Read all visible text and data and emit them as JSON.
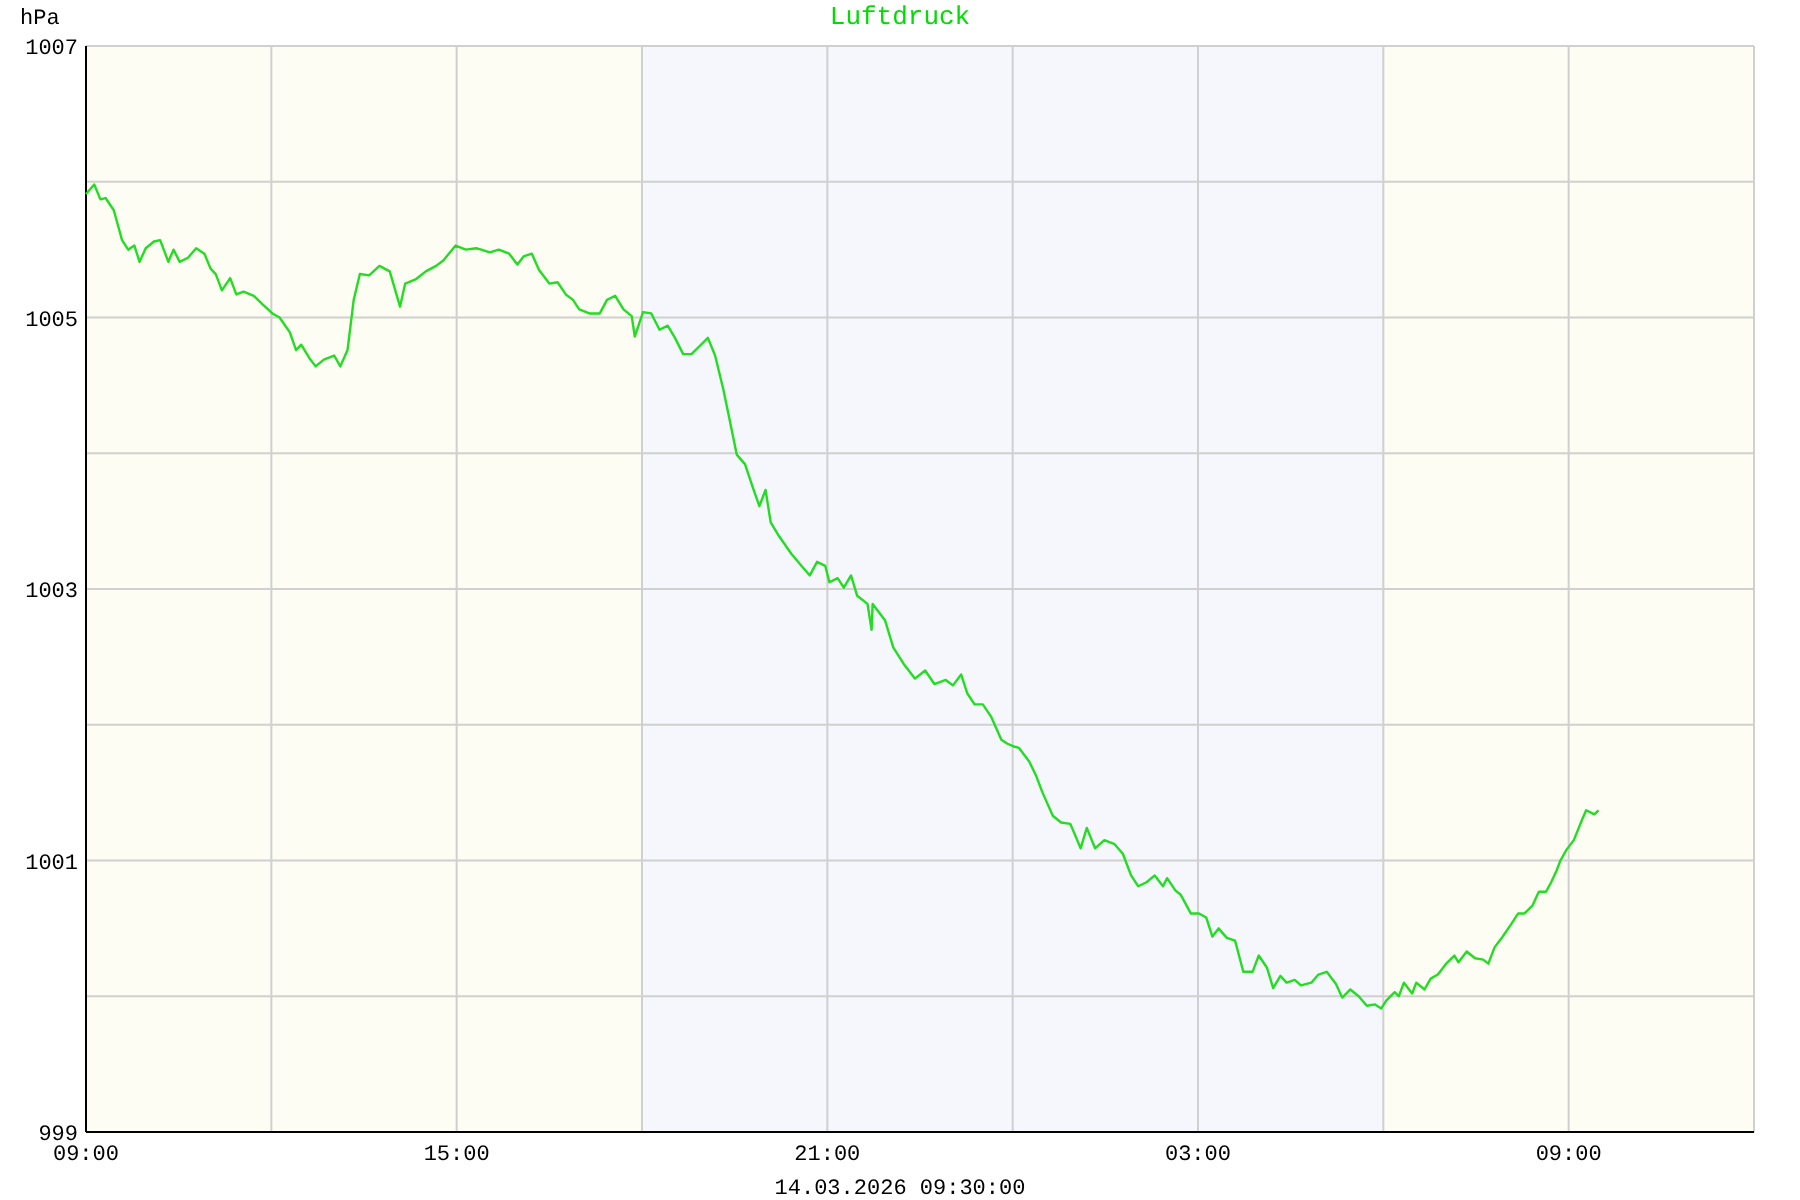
{
  "chart_data": {
    "type": "line",
    "title": "Luftdruck",
    "xlabel": "14.03.2026 09:30:00",
    "ylabel": "hPa",
    "xlim": [
      "2026-03-13T09:00",
      "2026-03-14T12:00"
    ],
    "ylim": [
      999,
      1007
    ],
    "xticks": [
      {
        "value": "2026-03-13T09:00",
        "label": "09:00"
      },
      {
        "value": "2026-03-13T12:00",
        "label": null
      },
      {
        "value": "2026-03-13T15:00",
        "label": "15:00"
      },
      {
        "value": "2026-03-13T18:00",
        "label": null
      },
      {
        "value": "2026-03-13T21:00",
        "label": "21:00"
      },
      {
        "value": "2026-03-14T00:00",
        "label": null
      },
      {
        "value": "2026-03-14T03:00",
        "label": "03:00"
      },
      {
        "value": "2026-03-14T06:00",
        "label": null
      },
      {
        "value": "2026-03-14T09:00",
        "label": "09:00"
      },
      {
        "value": "2026-03-14T12:00",
        "label": null
      }
    ],
    "yticks": [
      999,
      {
        "value": 1000,
        "label": null
      },
      1001,
      {
        "value": 1002,
        "label": null
      },
      1003,
      {
        "value": 1004,
        "label": null
      },
      1005,
      {
        "value": 1006,
        "label": null
      },
      1007
    ],
    "grid": true,
    "marker": "none",
    "line_style": "solid",
    "bands": [
      {
        "axis": "x",
        "from": "2026-03-13T09:00",
        "to": "2026-03-13T18:00",
        "color": "#fdfdf3"
      },
      {
        "axis": "x",
        "from": "2026-03-13T18:00",
        "to": "2026-03-14T06:00",
        "color": "#f5f7fc"
      },
      {
        "axis": "x",
        "from": "2026-03-14T06:00",
        "to": "2026-03-14T12:00",
        "color": "#fdfdf3"
      }
    ],
    "series": [
      {
        "color": "#22dd22",
        "x": [
          "2026-03-13T09:00",
          "2026-03-13T09:08",
          "2026-03-13T09:14",
          "2026-03-13T09:19",
          "2026-03-13T09:27",
          "2026-03-13T09:35",
          "2026-03-13T09:41",
          "2026-03-13T09:47",
          "2026-03-13T09:52",
          "2026-03-13T09:58",
          "2026-03-13T10:06",
          "2026-03-13T10:12",
          "2026-03-13T10:20",
          "2026-03-13T10:25",
          "2026-03-13T10:31",
          "2026-03-13T10:39",
          "2026-03-13T10:47",
          "2026-03-13T10:55",
          "2026-03-13T11:01",
          "2026-03-13T11:06",
          "2026-03-13T11:12",
          "2026-03-13T11:20",
          "2026-03-13T11:26",
          "2026-03-13T11:33",
          "2026-03-13T11:43",
          "2026-03-13T11:51",
          "2026-03-13T12:01",
          "2026-03-13T12:08",
          "2026-03-13T12:18",
          "2026-03-13T12:24",
          "2026-03-13T12:29",
          "2026-03-13T12:37",
          "2026-03-13T12:43",
          "2026-03-13T12:51",
          "2026-03-13T13:01",
          "2026-03-13T13:07",
          "2026-03-13T13:14",
          "2026-03-13T13:20",
          "2026-03-13T13:26",
          "2026-03-13T13:35",
          "2026-03-13T13:45",
          "2026-03-13T13:55",
          "2026-03-13T14:05",
          "2026-03-13T14:10",
          "2026-03-13T14:20",
          "2026-03-13T14:30",
          "2026-03-13T14:40",
          "2026-03-13T14:47",
          "2026-03-13T14:59",
          "2026-03-13T15:09",
          "2026-03-13T15:19",
          "2026-03-13T15:24",
          "2026-03-13T15:32",
          "2026-03-13T15:41",
          "2026-03-13T15:51",
          "2026-03-13T15:59",
          "2026-03-13T16:05",
          "2026-03-13T16:13",
          "2026-03-13T16:20",
          "2026-03-13T16:30",
          "2026-03-13T16:38",
          "2026-03-13T16:46",
          "2026-03-13T16:53",
          "2026-03-13T16:59",
          "2026-03-13T17:09",
          "2026-03-13T17:19",
          "2026-03-13T17:26",
          "2026-03-13T17:34",
          "2026-03-13T17:42",
          "2026-03-13T17:50",
          "2026-03-13T17:53",
          "2026-03-13T18:01",
          "2026-03-13T18:09",
          "2026-03-13T18:17",
          "2026-03-13T18:25",
          "2026-03-13T18:32",
          "2026-03-13T18:40",
          "2026-03-13T18:48",
          "2026-03-13T18:56",
          "2026-03-13T19:04",
          "2026-03-13T19:11",
          "2026-03-13T19:19",
          "2026-03-13T19:25",
          "2026-03-13T19:32",
          "2026-03-13T19:40",
          "2026-03-13T19:48",
          "2026-03-13T19:54",
          "2026-03-13T20:00",
          "2026-03-13T20:05",
          "2026-03-13T20:13",
          "2026-03-13T20:25",
          "2026-03-13T20:35",
          "2026-03-13T20:43",
          "2026-03-13T20:50",
          "2026-03-13T20:58",
          "2026-03-13T21:02",
          "2026-03-13T21:10",
          "2026-03-13T21:16",
          "2026-03-13T21:23",
          "2026-03-13T21:29",
          "2026-03-13T21:39",
          "2026-03-13T21:43",
          "2026-03-13T21:44",
          "2026-03-13T21:56",
          "2026-03-13T22:04",
          "2026-03-13T22:14",
          "2026-03-13T22:25",
          "2026-03-13T22:35",
          "2026-03-13T22:44",
          "2026-03-13T22:55",
          "2026-03-13T23:02",
          "2026-03-13T23:10",
          "2026-03-13T23:16",
          "2026-03-13T23:23",
          "2026-03-13T23:31",
          "2026-03-13T23:39",
          "2026-03-13T23:49",
          "2026-03-13T23:55",
          "2026-03-14T00:01",
          "2026-03-14T00:06",
          "2026-03-14T00:16",
          "2026-03-14T00:23",
          "2026-03-14T00:29",
          "2026-03-14T00:39",
          "2026-03-14T00:47",
          "2026-03-14T00:56",
          "2026-03-14T01:06",
          "2026-03-14T01:12",
          "2026-03-14T01:20",
          "2026-03-14T01:29",
          "2026-03-14T01:39",
          "2026-03-14T01:47",
          "2026-03-14T01:55",
          "2026-03-14T02:02",
          "2026-03-14T02:10",
          "2026-03-14T02:18",
          "2026-03-14T02:26",
          "2026-03-14T02:30",
          "2026-03-14T02:38",
          "2026-03-14T02:43",
          "2026-03-14T02:53",
          "2026-03-14T03:01",
          "2026-03-14T03:08",
          "2026-03-14T03:14",
          "2026-03-14T03:20",
          "2026-03-14T03:28",
          "2026-03-14T03:36",
          "2026-03-14T03:44",
          "2026-03-14T03:53",
          "2026-03-14T03:59",
          "2026-03-14T04:07",
          "2026-03-14T04:13",
          "2026-03-14T04:20",
          "2026-03-14T04:26",
          "2026-03-14T04:34",
          "2026-03-14T04:40",
          "2026-03-14T04:50",
          "2026-03-14T04:57",
          "2026-03-14T05:05",
          "2026-03-14T05:14",
          "2026-03-14T05:20",
          "2026-03-14T05:28",
          "2026-03-14T05:36",
          "2026-03-14T05:44",
          "2026-03-14T05:52",
          "2026-03-14T05:58",
          "2026-03-14T06:03",
          "2026-03-14T06:11",
          "2026-03-14T06:15",
          "2026-03-14T06:20",
          "2026-03-14T06:28",
          "2026-03-14T06:32",
          "2026-03-14T06:40",
          "2026-03-14T06:46",
          "2026-03-14T06:53",
          "2026-03-14T07:01",
          "2026-03-14T07:09",
          "2026-03-14T07:13",
          "2026-03-14T07:21",
          "2026-03-14T07:29",
          "2026-03-14T07:37",
          "2026-03-14T07:42",
          "2026-03-14T07:48",
          "2026-03-14T07:56",
          "2026-03-14T08:04",
          "2026-03-14T08:11",
          "2026-03-14T08:17",
          "2026-03-14T08:25",
          "2026-03-14T08:31",
          "2026-03-14T08:38",
          "2026-03-14T08:43",
          "2026-03-14T08:48",
          "2026-03-14T08:52",
          "2026-03-14T08:58",
          "2026-03-14T09:05",
          "2026-03-14T09:13",
          "2026-03-14T09:17",
          "2026-03-14T09:25",
          "2026-03-14T09:29"
        ],
        "values": [
          1005.91,
          1005.98,
          1005.87,
          1005.88,
          1005.79,
          1005.57,
          1005.5,
          1005.53,
          1005.41,
          1005.51,
          1005.56,
          1005.57,
          1005.41,
          1005.5,
          1005.41,
          1005.44,
          1005.51,
          1005.47,
          1005.36,
          1005.32,
          1005.2,
          1005.29,
          1005.17,
          1005.19,
          1005.16,
          1005.1,
          1005.03,
          1005.0,
          1004.89,
          1004.76,
          1004.8,
          1004.7,
          1004.64,
          1004.69,
          1004.72,
          1004.64,
          1004.76,
          1005.13,
          1005.32,
          1005.31,
          1005.38,
          1005.34,
          1005.08,
          1005.25,
          1005.28,
          1005.34,
          1005.38,
          1005.42,
          1005.53,
          1005.5,
          1005.51,
          1005.5,
          1005.48,
          1005.5,
          1005.47,
          1005.39,
          1005.45,
          1005.47,
          1005.35,
          1005.25,
          1005.26,
          1005.17,
          1005.13,
          1005.06,
          1005.03,
          1005.03,
          1005.13,
          1005.16,
          1005.06,
          1005.01,
          1004.86,
          1005.04,
          1005.03,
          1004.91,
          1004.94,
          1004.85,
          1004.73,
          1004.73,
          1004.79,
          1004.85,
          1004.72,
          1004.47,
          1004.25,
          1003.99,
          1003.92,
          1003.74,
          1003.61,
          1003.73,
          1003.49,
          1003.39,
          1003.26,
          1003.17,
          1003.1,
          1003.2,
          1003.17,
          1003.05,
          1003.08,
          1003.01,
          1003.1,
          1002.95,
          1002.89,
          1002.7,
          1002.89,
          1002.77,
          1002.57,
          1002.45,
          1002.34,
          1002.4,
          1002.3,
          1002.33,
          1002.29,
          1002.37,
          1002.23,
          1002.15,
          1002.15,
          1002.06,
          1001.89,
          1001.86,
          1001.84,
          1001.83,
          1001.73,
          1001.62,
          1001.5,
          1001.33,
          1001.28,
          1001.27,
          1001.09,
          1001.24,
          1001.09,
          1001.15,
          1001.12,
          1001.05,
          1000.89,
          1000.81,
          1000.84,
          1000.89,
          1000.81,
          1000.87,
          1000.78,
          1000.75,
          1000.61,
          1000.61,
          1000.58,
          1000.44,
          1000.5,
          1000.43,
          1000.41,
          1000.18,
          1000.18,
          1000.3,
          1000.21,
          1000.06,
          1000.15,
          1000.1,
          1000.12,
          1000.08,
          1000.1,
          1000.16,
          1000.18,
          1000.09,
          999.99,
          1000.05,
          1000.0,
          999.93,
          999.94,
          999.91,
          999.97,
          1000.03,
          1000.0,
          1000.1,
          1000.02,
          1000.1,
          1000.05,
          1000.13,
          1000.16,
          1000.24,
          1000.3,
          1000.25,
          1000.33,
          1000.28,
          1000.27,
          1000.24,
          1000.36,
          1000.44,
          1000.53,
          1000.61,
          1000.61,
          1000.67,
          1000.77,
          1000.77,
          1000.84,
          1000.92,
          1001.0,
          1001.08,
          1001.15,
          1001.3,
          1001.37,
          1001.34,
          1001.37
        ]
      }
    ]
  }
}
